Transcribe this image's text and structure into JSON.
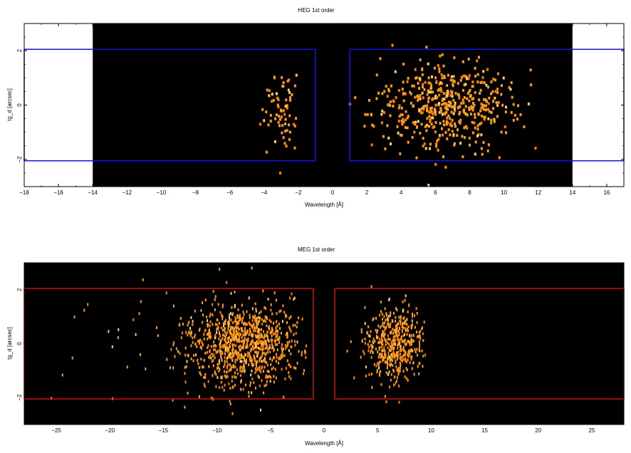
{
  "chart_data": [
    {
      "type": "heatmap",
      "title": "HEG 1st order",
      "xlabel": "Wavelength [Å]",
      "ylabel": "tg_d [arcsec]",
      "xlim": [
        -18,
        17
      ],
      "ylim": [
        -3,
        3
      ],
      "xticks": [
        -18,
        -16,
        -14,
        -12,
        -10,
        -8,
        -6,
        -4,
        -2,
        0,
        2,
        4,
        6,
        8,
        10,
        12,
        14,
        16
      ],
      "yticks": [
        -2,
        0,
        2
      ],
      "image_extent_x": [
        -14,
        14
      ],
      "background": "#000000",
      "event_colors": [
        "#ff9a1a",
        "#ffd060",
        "#ff7f00"
      ],
      "box_color": "#1414dc",
      "regions": [
        {
          "x": [
            -18,
            -1
          ],
          "y": [
            -2.05,
            2.05
          ]
        },
        {
          "x": [
            1,
            17
          ],
          "y": [
            -2.05,
            2.05
          ]
        }
      ],
      "clusters": [
        {
          "x": -3,
          "xsig": 0.55,
          "xr": [
            -4.5,
            -1.8
          ],
          "y": 0,
          "ysig": 0.8,
          "yr": [
            -3,
            2.7
          ],
          "n": 70
        },
        {
          "x": 6.6,
          "xsig": 2.1,
          "xr": [
            0.8,
            12.5
          ],
          "y": 0,
          "ysig": 0.75,
          "yr": [
            -3,
            2.85
          ],
          "n": 500
        }
      ]
    },
    {
      "type": "heatmap",
      "title": "MEG 1st order",
      "xlabel": "Wavelength [Å]",
      "ylabel": "tg_d [arcsec]",
      "xlim": [
        -28,
        28
      ],
      "ylim": [
        -3,
        3
      ],
      "xticks": [
        -25,
        -20,
        -15,
        -10,
        -5,
        0,
        5,
        10,
        15,
        20,
        25
      ],
      "yticks": [
        -2,
        0,
        2
      ],
      "image_extent_x": [
        -28,
        28
      ],
      "background": "#000000",
      "event_colors": [
        "#ff9a1a",
        "#ffd060",
        "#ff7f00"
      ],
      "box_color": "#d01010",
      "regions": [
        {
          "x": [
            -28,
            -1
          ],
          "y": [
            -2.05,
            2.05
          ]
        },
        {
          "x": [
            1,
            28
          ],
          "y": [
            -2.05,
            2.05
          ]
        }
      ],
      "clusters": [
        {
          "x": -7.5,
          "xsig": 2.6,
          "xr": [
            -15,
            -1.5
          ],
          "y": 0,
          "ysig": 0.75,
          "yr": [
            -3,
            3
          ],
          "n": 950
        },
        {
          "x": 6.5,
          "xsig": 1.4,
          "xr": [
            1.5,
            9.5
          ],
          "y": 0,
          "ysig": 0.7,
          "yr": [
            -3,
            3
          ],
          "n": 480
        },
        {
          "x": -14,
          "xsig": 7,
          "xr": [
            -27.5,
            -1
          ],
          "y": 0,
          "ysig": 1.4,
          "yr": [
            -3,
            3
          ],
          "n": 60
        }
      ]
    }
  ]
}
